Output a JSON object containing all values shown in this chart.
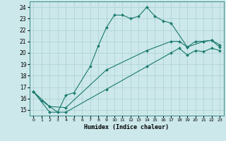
{
  "title": "",
  "xlabel": "Humidex (Indice chaleur)",
  "bg_color": "#cce8ea",
  "grid_color": "#aacfd2",
  "line_color": "#1a7a6e",
  "xlim": [
    -0.5,
    23.5
  ],
  "ylim": [
    14.5,
    24.5
  ],
  "xticks": [
    0,
    1,
    2,
    3,
    4,
    5,
    6,
    7,
    8,
    9,
    10,
    11,
    12,
    13,
    14,
    15,
    16,
    17,
    18,
    19,
    20,
    21,
    22,
    23
  ],
  "yticks": [
    15,
    16,
    17,
    18,
    19,
    20,
    21,
    22,
    23,
    24
  ],
  "line1_x": [
    0,
    1,
    2,
    3,
    4,
    5,
    7,
    8,
    9,
    10,
    11,
    12,
    13,
    14,
    15,
    16,
    17,
    19,
    21,
    22,
    23
  ],
  "line1_y": [
    16.6,
    15.8,
    15.3,
    14.8,
    16.3,
    16.5,
    18.8,
    20.6,
    22.2,
    23.3,
    23.3,
    23.0,
    23.2,
    24.0,
    23.2,
    22.8,
    22.6,
    20.5,
    21.0,
    21.1,
    20.5
  ],
  "line2_x": [
    0,
    2,
    4,
    9,
    14,
    17,
    18,
    19,
    20,
    21,
    22,
    23
  ],
  "line2_y": [
    16.6,
    15.3,
    15.2,
    18.5,
    20.2,
    21.0,
    21.0,
    20.5,
    21.0,
    21.0,
    21.1,
    20.7
  ],
  "line3_x": [
    0,
    2,
    4,
    9,
    14,
    17,
    18,
    19,
    20,
    21,
    22,
    23
  ],
  "line3_y": [
    16.6,
    14.8,
    14.8,
    16.8,
    18.8,
    20.0,
    20.4,
    19.8,
    20.2,
    20.1,
    20.4,
    20.2
  ]
}
